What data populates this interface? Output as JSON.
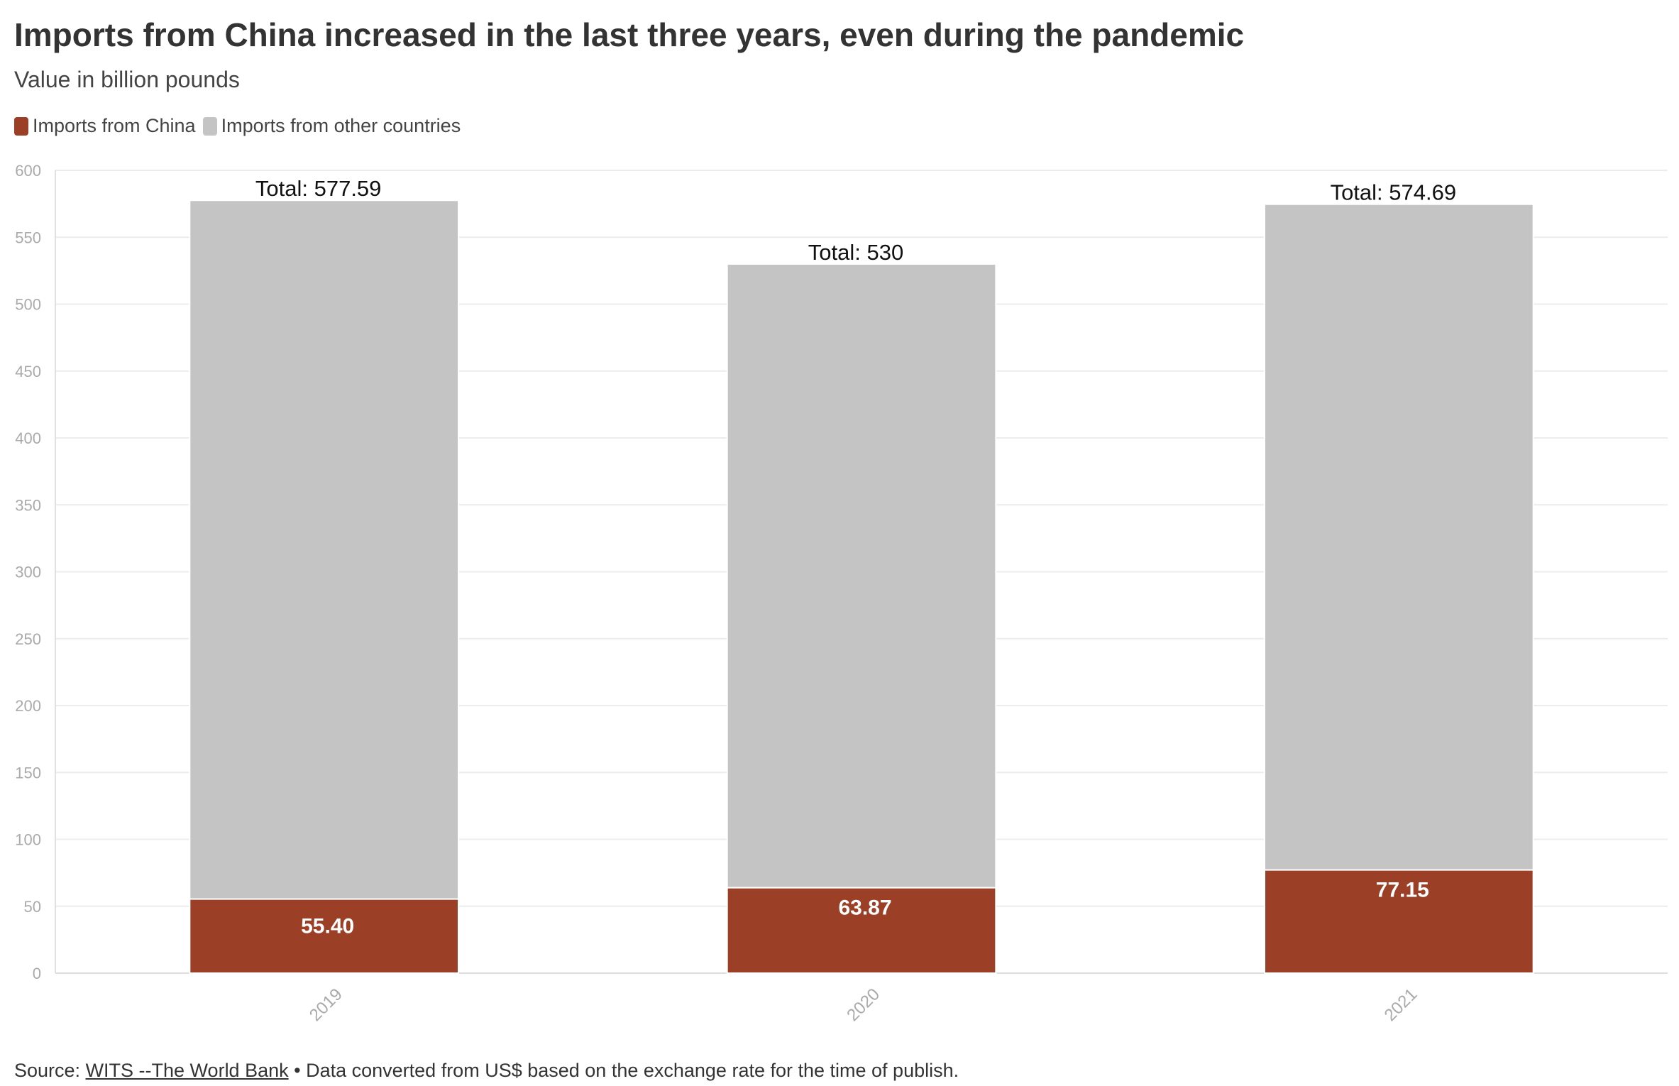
{
  "title": "Imports from China increased in the last three years, even during the pandemic",
  "subtitle": "Value in billion pounds",
  "source": {
    "prefix": "Source: ",
    "link_text": "WITS --The World Bank",
    "suffix": " • Data converted from US$ based on the exchange rate for the time of publish."
  },
  "chart_data": {
    "type": "bar",
    "stacked": true,
    "categories": [
      "2019",
      "2020",
      "2021"
    ],
    "series": [
      {
        "name": "Imports from China",
        "color": "#9b3f27",
        "values": [
          55.4,
          63.87,
          77.15
        ],
        "labels": [
          "55.40",
          "63.87",
          "77.15"
        ]
      },
      {
        "name": "Imports from other countries",
        "color": "#c4c4c4",
        "values": [
          522.19,
          466.13,
          497.54
        ]
      }
    ],
    "totals": [
      577.59,
      530,
      574.69
    ],
    "total_labels": [
      "Total: 577.59",
      "Total: 530",
      "Total: 574.69"
    ],
    "ylim": [
      0,
      600
    ],
    "yticks": [
      0,
      50,
      100,
      150,
      200,
      250,
      300,
      350,
      400,
      450,
      500,
      550,
      600
    ],
    "grid": true,
    "legend_position": "top-left",
    "x_tick_rotation": -45
  }
}
